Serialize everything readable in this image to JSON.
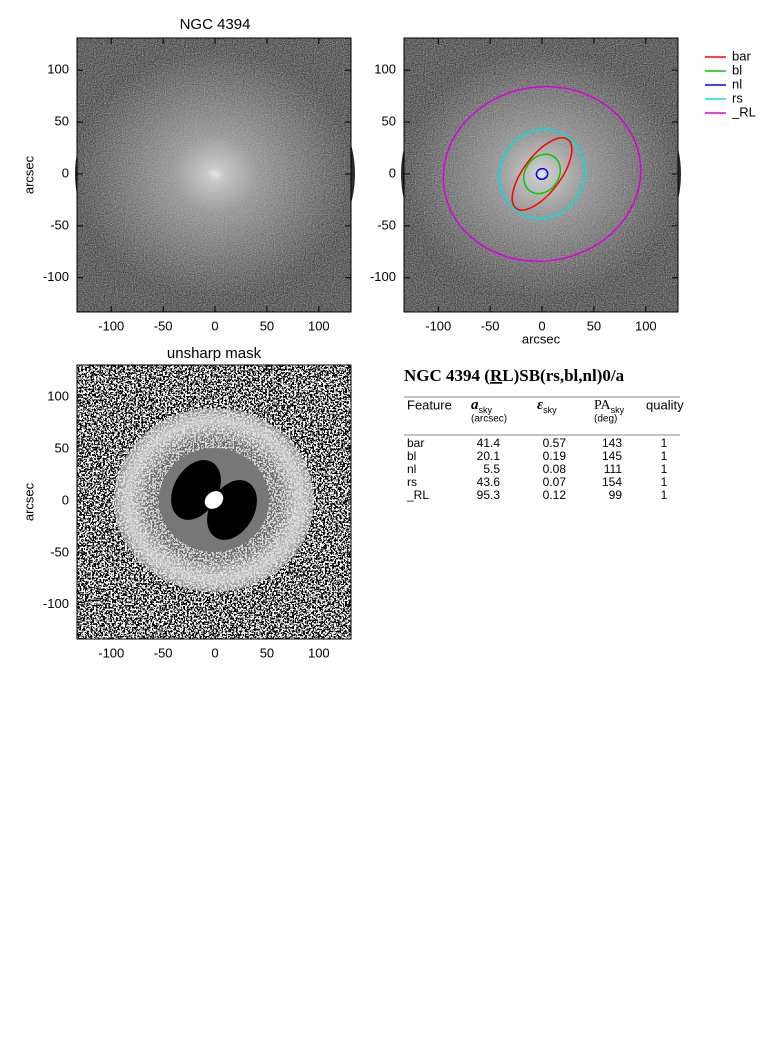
{
  "panels": [
    {
      "title": "NGC 4394",
      "y_label": "arcsec"
    },
    {
      "x_label": "arcsec"
    },
    {
      "title": "unsharp mask",
      "y_label": "arcsec"
    }
  ],
  "axes": {
    "xlim": [
      -133,
      131
    ],
    "ylim": [
      -133,
      131
    ],
    "xticks": [
      -100,
      -50,
      0,
      50,
      100
    ],
    "yticks": [
      -100,
      -50,
      0,
      50,
      100
    ]
  },
  "legend": [
    {
      "name": "bar",
      "color": "#ff0000"
    },
    {
      "name": "bl",
      "color": "#00cc00"
    },
    {
      "name": "nl",
      "color": "#0000ff"
    },
    {
      "name": "rs",
      "color": "#00e0e0"
    },
    {
      "name": "_RL",
      "color": "#dd00dd"
    }
  ],
  "table": {
    "title": [
      "NGC 4394  (",
      "R",
      "L)SB(rs,bl,nl)0/a"
    ],
    "headers": [
      {
        "text": "Feature"
      },
      {
        "symbol": "a",
        "sub": "sky",
        "unit": "(arcsec)"
      },
      {
        "symbol": "ε",
        "sub": "sky"
      },
      {
        "symbol": "PA",
        "sub": "sky",
        "unit": "(deg)"
      },
      {
        "text": "quality"
      }
    ],
    "rows": [
      [
        "bar",
        41.4,
        0.57,
        143,
        1
      ],
      [
        "bl",
        20.1,
        0.19,
        145,
        1
      ],
      [
        "nl",
        5.5,
        0.08,
        111,
        1
      ],
      [
        "rs",
        43.6,
        0.07,
        154,
        1
      ],
      [
        "_RL",
        95.3,
        0.12,
        99,
        1
      ]
    ]
  }
}
